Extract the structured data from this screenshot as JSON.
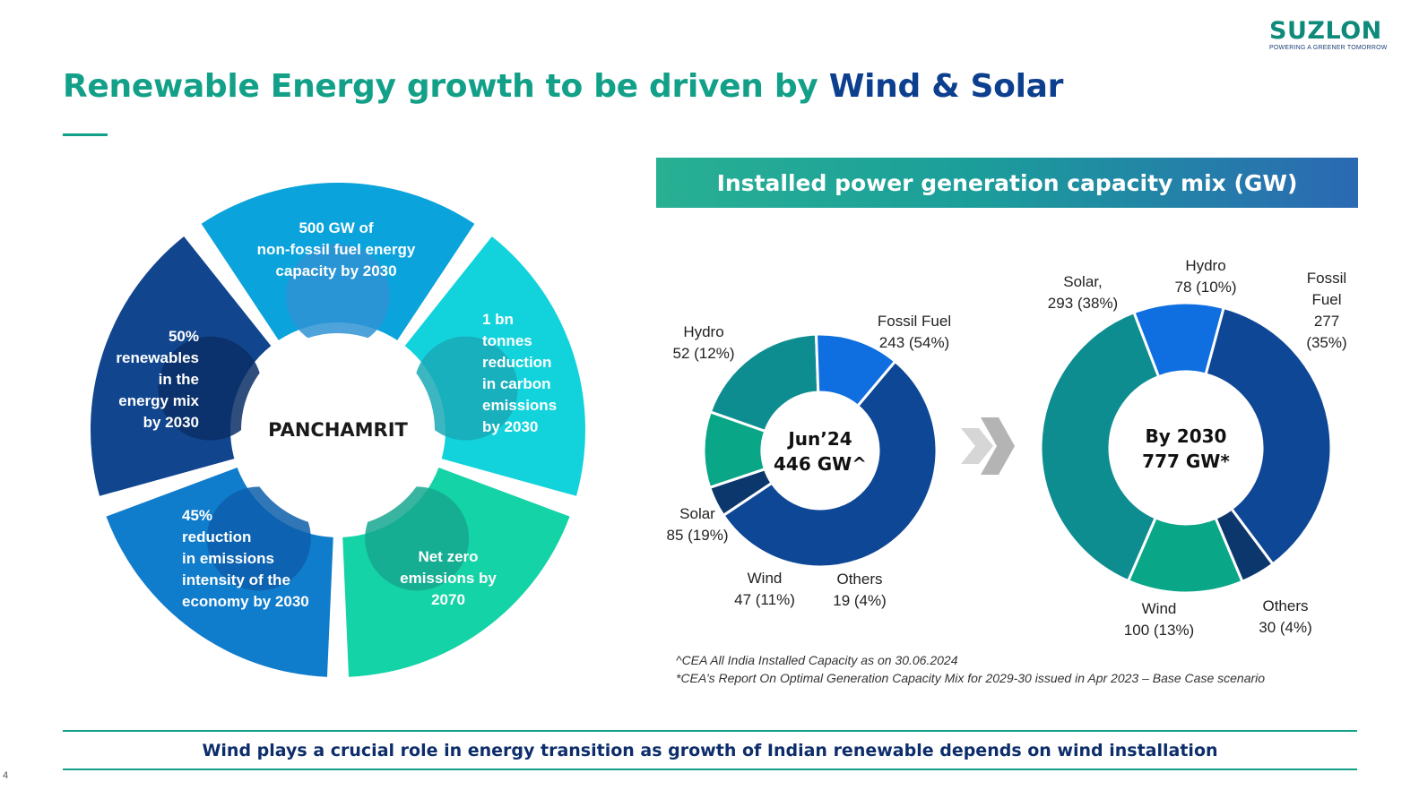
{
  "slide": {
    "title_part1": "Renewable Energy growth to be driven by ",
    "title_part2": "Wind & Solar",
    "page_number": "4",
    "bottom_message": "Wind plays a crucial role in energy transition as growth of Indian renewable depends on wind installation"
  },
  "logo": {
    "name": "SUZLON",
    "tagline": "POWERING A GREENER TOMORROW"
  },
  "panchamrit": {
    "center_label": "PANCHAMRIT",
    "segments": [
      {
        "lines": [
          "500 GW of",
          "non-fossil fuel energy",
          "capacity by 2030"
        ],
        "color": "#0aa3dc"
      },
      {
        "lines": [
          "1 bn",
          "tonnes",
          "reduction",
          "in carbon",
          "emissions",
          "by 2030"
        ],
        "color": "#12d3dc"
      },
      {
        "lines": [
          "Net zero",
          "emissions by",
          "2070"
        ],
        "color": "#14d3a6"
      },
      {
        "lines": [
          "45%",
          "reduction",
          "in emissions",
          "intensity of the",
          "economy by 2030"
        ],
        "color": "#0f7ccc"
      },
      {
        "lines": [
          "50%",
          "renewables",
          "in the",
          "energy mix",
          "by 2030"
        ],
        "color": "#11468f"
      }
    ]
  },
  "chart": {
    "banner": "Installed power generation capacity mix (GW)",
    "footnotes": [
      "^CEA All India Installed Capacity as on 30.06.2024",
      "*CEA’s Report On Optimal Generation Capacity Mix for 2029-30 issued in Apr 2023 – Base Case scenario"
    ]
  },
  "chart_data": [
    {
      "type": "pie",
      "title": "Jun’24 446 GW^",
      "center_label": [
        "Jun’24",
        "446 GW^"
      ],
      "total": 446,
      "unit": "GW",
      "slices": [
        {
          "name": "Fossil Fuel",
          "value": 243,
          "pct": 54,
          "label": [
            "Fossil Fuel",
            "243 (54%)"
          ],
          "color": "#0e4796"
        },
        {
          "name": "Others",
          "value": 19,
          "pct": 4,
          "label": [
            "Others",
            "19 (4%)"
          ],
          "color": "#0c376c"
        },
        {
          "name": "Wind",
          "value": 47,
          "pct": 11,
          "label": [
            "Wind",
            "47 (11%)"
          ],
          "color": "#0aa688"
        },
        {
          "name": "Solar",
          "value": 85,
          "pct": 19,
          "label": [
            "Solar",
            "85 (19%)"
          ],
          "color": "#0e8d91"
        },
        {
          "name": "Hydro",
          "value": 52,
          "pct": 12,
          "label": [
            "Hydro",
            "52 (12%)"
          ],
          "color": "#0f6ee0"
        }
      ]
    },
    {
      "type": "pie",
      "title": "By 2030 777 GW*",
      "center_label": [
        "By 2030",
        "777 GW*"
      ],
      "total": 777,
      "unit": "GW",
      "slices": [
        {
          "name": "Hydro",
          "value": 78,
          "pct": 10,
          "label": [
            "Hydro",
            "78 (10%)"
          ],
          "color": "#0f6ee0"
        },
        {
          "name": "Fossil Fuel",
          "value": 277,
          "pct": 35,
          "label": [
            "Fossil",
            "Fuel",
            "277",
            "(35%)"
          ],
          "color": "#0e4796"
        },
        {
          "name": "Others",
          "value": 30,
          "pct": 4,
          "label": [
            "Others",
            "30 (4%)"
          ],
          "color": "#0c376c"
        },
        {
          "name": "Wind",
          "value": 100,
          "pct": 13,
          "label": [
            "Wind",
            "100 (13%)"
          ],
          "color": "#0aa688"
        },
        {
          "name": "Solar",
          "value": 293,
          "pct": 38,
          "label": [
            "Solar,",
            "293 (38%)"
          ],
          "color": "#0e8d91"
        }
      ]
    }
  ]
}
